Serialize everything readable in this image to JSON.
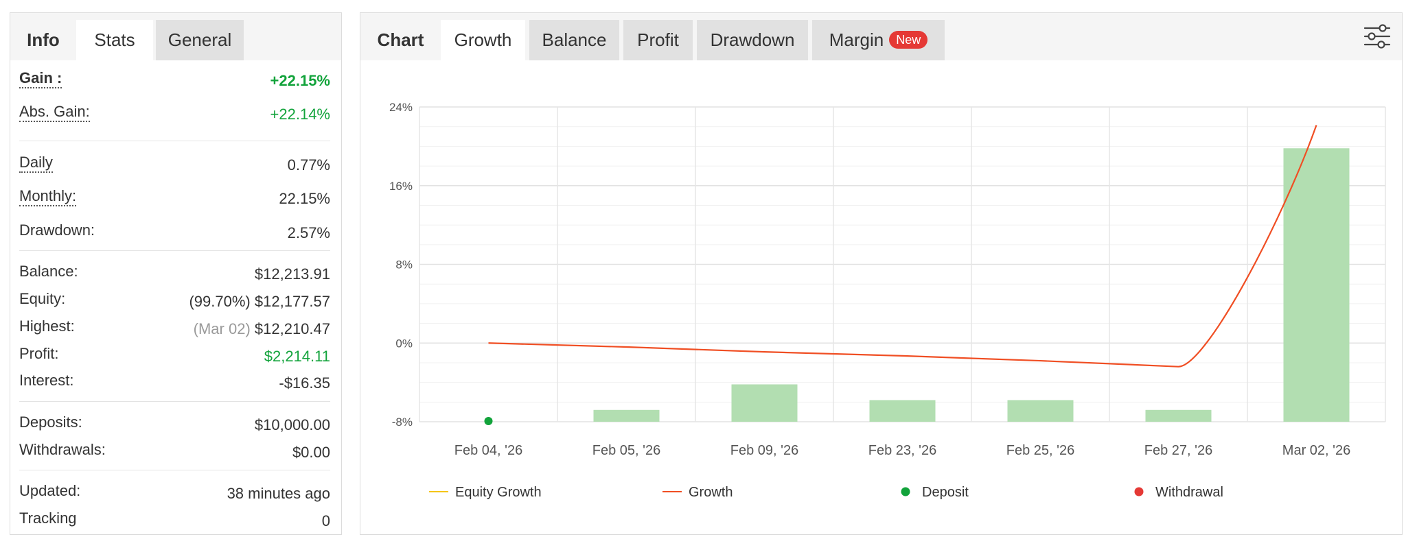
{
  "left_tabs": [
    {
      "label": "Info"
    },
    {
      "label": "Stats"
    },
    {
      "label": "General"
    }
  ],
  "stats": {
    "gain": {
      "label": "Gain :",
      "value": "+22.15%"
    },
    "abs_gain": {
      "label": "Abs. Gain:",
      "value": "+22.14%"
    },
    "daily": {
      "label": "Daily",
      "value": "0.77%"
    },
    "monthly": {
      "label": "Monthly:",
      "value": "22.15%"
    },
    "drawdown": {
      "label": "Drawdown:",
      "value": "2.57%"
    },
    "balance": {
      "label": "Balance:",
      "value": "$12,213.91"
    },
    "equity": {
      "label": "Equity:",
      "note": "(99.70%)",
      "value": "$12,177.57"
    },
    "highest": {
      "label": "Highest:",
      "note": "(Mar 02)",
      "value": "$12,210.47"
    },
    "profit": {
      "label": "Profit:",
      "value": "$2,214.11"
    },
    "interest": {
      "label": "Interest:",
      "value": "-$16.35"
    },
    "deposits": {
      "label": "Deposits:",
      "value": "$10,000.00"
    },
    "withdrawals": {
      "label": "Withdrawals:",
      "value": "$0.00"
    },
    "updated": {
      "label": "Updated:",
      "value": "38 minutes ago"
    },
    "tracking": {
      "label": "Tracking",
      "value": "0"
    }
  },
  "chart_tabs": [
    {
      "label": "Chart"
    },
    {
      "label": "Growth"
    },
    {
      "label": "Balance"
    },
    {
      "label": "Profit"
    },
    {
      "label": "Drawdown"
    },
    {
      "label": "Margin",
      "badge": "New"
    }
  ],
  "icons": {
    "settings": "sliders-icon"
  },
  "colors": {
    "green_text": "#12a33b",
    "bar": "#b2deb1",
    "growth_line": "#f04e23",
    "equity_line": "#f5c518",
    "deposit": "#12a33b",
    "withdrawal": "#e53935",
    "badge": "#e53935"
  },
  "chart_data": {
    "type": "bar",
    "categories": [
      "Feb 04, '26",
      "Feb 05, '26",
      "Feb 09, '26",
      "Feb 23, '26",
      "Feb 25, '26",
      "Feb 27, '26",
      "Mar 02, '26"
    ],
    "series": [
      {
        "type": "bar",
        "values": [
          0,
          -6.8,
          -4.2,
          -5.8,
          -5.8,
          -6.8,
          19.8
        ]
      },
      {
        "type": "line",
        "name": "Growth",
        "values": [
          0.0,
          -0.4,
          -0.9,
          -1.3,
          -1.8,
          -2.4,
          22.15
        ]
      },
      {
        "type": "scatter",
        "name": "Deposit",
        "points": [
          {
            "x": "Feb 04, '26",
            "y": -8
          }
        ]
      }
    ],
    "ylim": [
      -8,
      24
    ],
    "yticks": [
      -8,
      0,
      8,
      16,
      24
    ],
    "ytick_labels": [
      "-8%",
      "0%",
      "8%",
      "16%",
      "24%"
    ],
    "grid": true,
    "legend": {
      "position": "bottom",
      "items": [
        {
          "label": "Equity Growth",
          "marker": "line",
          "color": "#f5c518"
        },
        {
          "label": "Growth",
          "marker": "line",
          "color": "#f04e23"
        },
        {
          "label": "Deposit",
          "marker": "dot",
          "color": "#12a33b"
        },
        {
          "label": "Withdrawal",
          "marker": "dot",
          "color": "#e53935"
        }
      ]
    }
  }
}
